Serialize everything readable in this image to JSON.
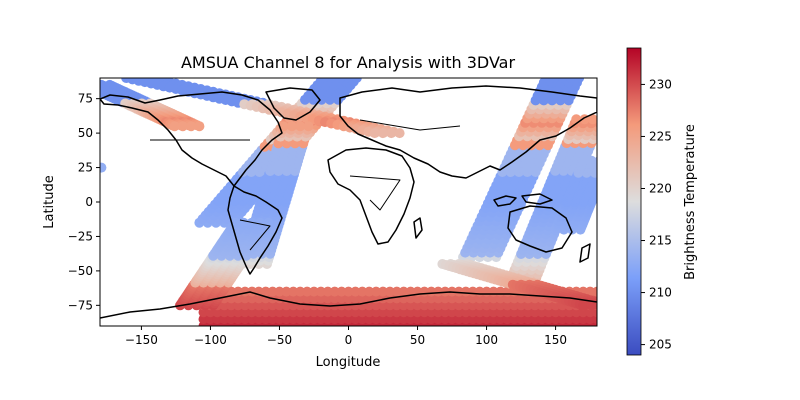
{
  "chart_data": {
    "type": "scatter",
    "title": "AMSUA Channel 8 for Analysis with 3DVar",
    "xlabel": "Longitude",
    "ylabel": "Latitude",
    "xlim": [
      -180,
      180
    ],
    "ylim": [
      -90,
      90
    ],
    "xticks": [
      -150,
      -100,
      -50,
      0,
      50,
      100,
      150
    ],
    "yticks": [
      -75,
      -50,
      -25,
      0,
      25,
      50,
      75
    ],
    "grid": false,
    "colormap": "coolwarm",
    "colorbar": {
      "label": "Brightness Temperature",
      "range": [
        204,
        233.5
      ],
      "ticks": [
        205,
        210,
        215,
        220,
        225,
        230
      ]
    },
    "colors": {
      "cold": "#3b4cc0",
      "neutral": "#dddddd",
      "warm": "#b40426"
    },
    "swaths": [
      {
        "lon_start": -95,
        "lon_end": -5,
        "lat_start": -15,
        "lat_end": 90,
        "half_width_deg": 13
      },
      {
        "lon_start": -150,
        "lon_end": 30,
        "lat_start": 90,
        "lat_end": 50,
        "half_width_deg": 11
      },
      {
        "lon_start": -180,
        "lon_end": -115,
        "lat_start": 85,
        "lat_end": 55,
        "half_width_deg": 11
      },
      {
        "lon_start": -68,
        "lon_end": -38,
        "lat_start": -45,
        "lat_end": 55,
        "half_width_deg": 9
      },
      {
        "lon_start": -110,
        "lon_end": -70,
        "lat_start": -75,
        "lat_end": -15,
        "half_width_deg": 12
      },
      {
        "lon_start": 95,
        "lon_end": 155,
        "lat_start": -40,
        "lat_end": 90,
        "half_width_deg": 12
      },
      {
        "lon_start": 128,
        "lon_end": 175,
        "lat_start": -55,
        "lat_end": 60,
        "half_width_deg": 10
      },
      {
        "lon_start": 160,
        "lon_end": 180,
        "lat_start": -20,
        "lat_end": 30,
        "half_width_deg": 10
      },
      {
        "lon_start": 78,
        "lon_end": 180,
        "lat_start": -45,
        "lat_end": -75,
        "half_width_deg": 10
      }
    ],
    "south_band": {
      "lon_range": [
        -105,
        180
      ],
      "lat_range": [
        -90,
        -65
      ]
    },
    "isolated_points": [
      {
        "lon": -179,
        "lat": 25,
        "value": 213
      }
    ]
  }
}
